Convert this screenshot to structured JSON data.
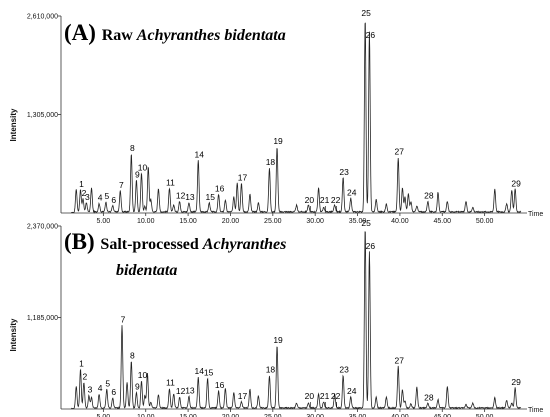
{
  "chart_data": [
    {
      "type": "line",
      "panel_letter": "(A)",
      "title_plain": "Raw",
      "title_italic": "Achyranthes bidentata",
      "title_italic_2": "",
      "ylabel": "Intensity",
      "xlabel": "Time",
      "y_tick_labels": [
        "2,610,000",
        "1,305,000"
      ],
      "xlim": [
        0,
        55
      ],
      "ylim": [
        0,
        2610000
      ],
      "x_ticks": [
        5,
        10,
        15,
        20,
        25,
        30,
        35,
        40,
        45,
        50
      ],
      "x_tick_labels": [
        "5.00",
        "10.00",
        "15.00",
        "20.00",
        "25.00",
        "30.00",
        "35.00",
        "40.00",
        "45.00",
        "50.00"
      ],
      "peaks": [
        {
          "label": "1",
          "x": 2.3,
          "y": 290000
        },
        {
          "label": "2",
          "x": 2.6,
          "y": 170000
        },
        {
          "label": "3",
          "x": 3.0,
          "y": 120000
        },
        {
          "label": "4",
          "x": 4.5,
          "y": 110000
        },
        {
          "label": "5",
          "x": 5.3,
          "y": 130000
        },
        {
          "label": "6",
          "x": 6.1,
          "y": 80000
        },
        {
          "label": "7",
          "x": 7.0,
          "y": 280000
        },
        {
          "label": "8",
          "x": 8.3,
          "y": 770000
        },
        {
          "label": "9",
          "x": 8.9,
          "y": 420000
        },
        {
          "label": "10",
          "x": 9.5,
          "y": 510000
        },
        {
          "label": "11",
          "x": 12.8,
          "y": 310000
        },
        {
          "label": "12",
          "x": 14.0,
          "y": 140000
        },
        {
          "label": "13",
          "x": 15.1,
          "y": 120000
        },
        {
          "label": "14",
          "x": 16.2,
          "y": 680000
        },
        {
          "label": "15",
          "x": 17.5,
          "y": 120000
        },
        {
          "label": "16",
          "x": 18.6,
          "y": 230000
        },
        {
          "label": "17",
          "x": 21.3,
          "y": 380000
        },
        {
          "label": "18",
          "x": 24.6,
          "y": 580000
        },
        {
          "label": "19",
          "x": 25.5,
          "y": 860000
        },
        {
          "label": "20",
          "x": 29.2,
          "y": 90000
        },
        {
          "label": "21",
          "x": 31.0,
          "y": 60000
        },
        {
          "label": "22",
          "x": 32.3,
          "y": 90000
        },
        {
          "label": "23",
          "x": 33.3,
          "y": 450000
        },
        {
          "label": "24",
          "x": 34.2,
          "y": 180000
        },
        {
          "label": "25",
          "x": 35.9,
          "y": 2560000
        },
        {
          "label": "26",
          "x": 36.4,
          "y": 2380000
        },
        {
          "label": "27",
          "x": 39.8,
          "y": 720000
        },
        {
          "label": "28",
          "x": 43.3,
          "y": 140000
        },
        {
          "label": "29",
          "x": 53.6,
          "y": 300000
        }
      ]
    },
    {
      "type": "line",
      "panel_letter": "(B)",
      "title_plain": "Salt-processed",
      "title_italic": "Achyranthes",
      "title_italic_2": "bidentata",
      "ylabel": "Intensity",
      "xlabel": "Time",
      "y_tick_labels": [
        "2,370,000",
        "1,185,000"
      ],
      "xlim": [
        0,
        55
      ],
      "ylim": [
        0,
        2370000
      ],
      "x_ticks": [
        5,
        10,
        15,
        20,
        25,
        30,
        35,
        40,
        45,
        50
      ],
      "x_tick_labels": [
        "5.00",
        "10.00",
        "15.00",
        "20.00",
        "25.00",
        "30.00",
        "35.00",
        "40.00",
        "45.00",
        "50.00"
      ],
      "peaks": [
        {
          "label": "1",
          "x": 2.3,
          "y": 500000
        },
        {
          "label": "2",
          "x": 2.7,
          "y": 330000
        },
        {
          "label": "3",
          "x": 3.3,
          "y": 160000
        },
        {
          "label": "4",
          "x": 4.5,
          "y": 180000
        },
        {
          "label": "5",
          "x": 5.4,
          "y": 240000
        },
        {
          "label": "6",
          "x": 6.1,
          "y": 130000
        },
        {
          "label": "7",
          "x": 7.2,
          "y": 1070000
        },
        {
          "label": "8",
          "x": 8.3,
          "y": 600000
        },
        {
          "label": "9",
          "x": 8.9,
          "y": 200000
        },
        {
          "label": "10",
          "x": 9.5,
          "y": 350000
        },
        {
          "label": "11",
          "x": 12.8,
          "y": 250000
        },
        {
          "label": "12",
          "x": 14.0,
          "y": 140000
        },
        {
          "label": "13",
          "x": 15.1,
          "y": 150000
        },
        {
          "label": "14",
          "x": 16.2,
          "y": 400000
        },
        {
          "label": "15",
          "x": 17.3,
          "y": 380000
        },
        {
          "label": "16",
          "x": 18.6,
          "y": 220000
        },
        {
          "label": "17",
          "x": 21.3,
          "y": 80000
        },
        {
          "label": "18",
          "x": 24.6,
          "y": 420000
        },
        {
          "label": "19",
          "x": 25.5,
          "y": 800000
        },
        {
          "label": "20",
          "x": 29.2,
          "y": 60000
        },
        {
          "label": "21",
          "x": 31.0,
          "y": 80000
        },
        {
          "label": "22",
          "x": 32.3,
          "y": 180000
        },
        {
          "label": "23",
          "x": 33.3,
          "y": 420000
        },
        {
          "label": "24",
          "x": 34.2,
          "y": 140000
        },
        {
          "label": "25",
          "x": 35.9,
          "y": 2340000
        },
        {
          "label": "26",
          "x": 36.4,
          "y": 2020000
        },
        {
          "label": "27",
          "x": 39.8,
          "y": 540000
        },
        {
          "label": "28",
          "x": 43.3,
          "y": 60000
        },
        {
          "label": "29",
          "x": 53.6,
          "y": 260000
        }
      ]
    }
  ]
}
